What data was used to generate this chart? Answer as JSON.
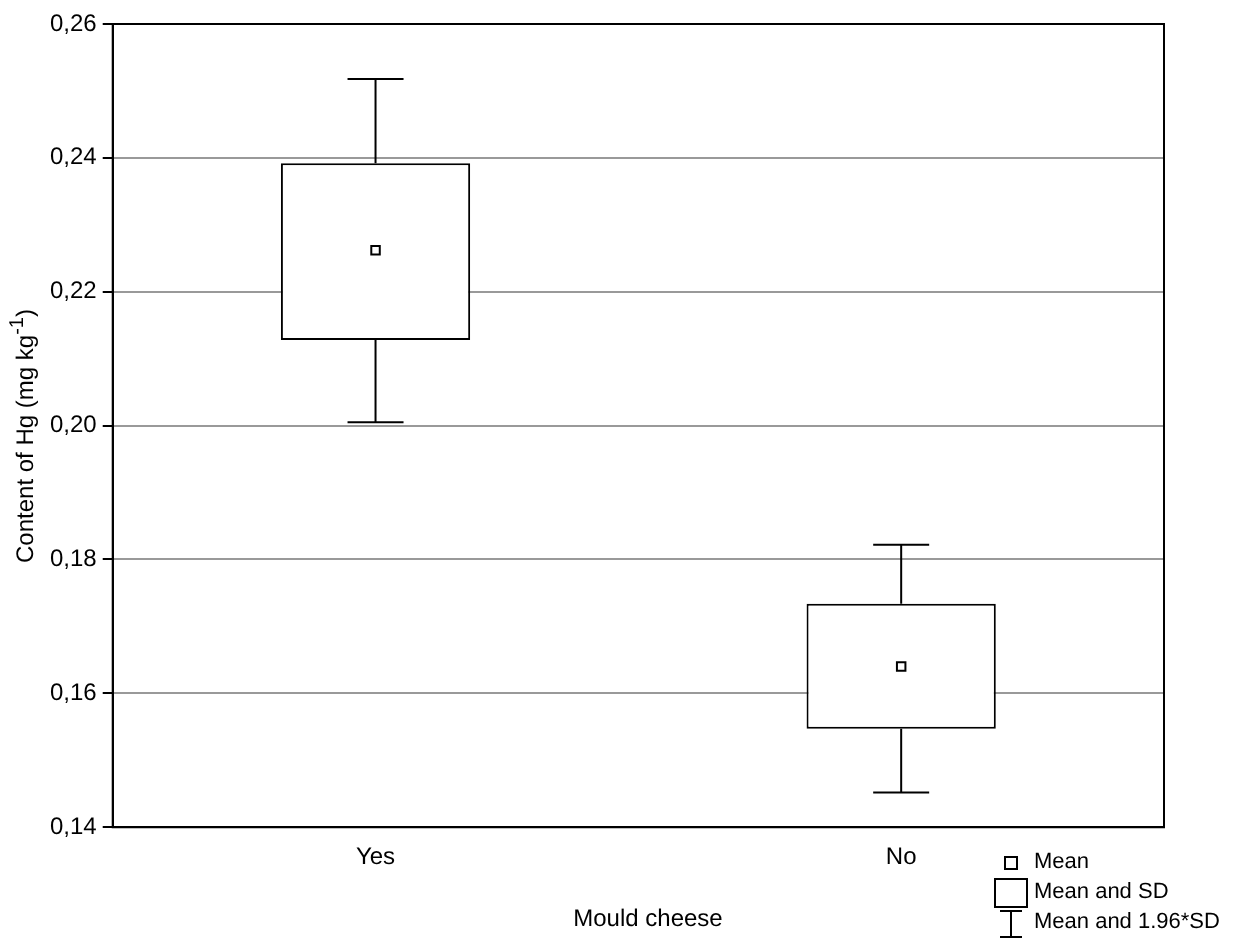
{
  "chart_data": {
    "type": "box",
    "xlabel": "Mould cheese",
    "ylabel": "Content of Hg (mg kg$^{-1}$)",
    "categories": [
      "Yes",
      "No"
    ],
    "boxes": [
      {
        "low": 0.2005,
        "q1": 0.2128,
        "q3": 0.2392,
        "high": 0.2518,
        "mean": 0.2262,
        "median": null
      },
      {
        "low": 0.1452,
        "q1": 0.1547,
        "q3": 0.1734,
        "high": 0.1822,
        "mean": 0.164,
        "median": null
      }
    ],
    "ylim": [
      0.14,
      0.26
    ],
    "yticks": [
      {
        "value": 0.14,
        "label": "0,14"
      },
      {
        "value": 0.16,
        "label": "0,16"
      },
      {
        "value": 0.18,
        "label": "0,18"
      },
      {
        "value": 0.2,
        "label": "0,20"
      },
      {
        "value": 0.22,
        "label": "0,22"
      },
      {
        "value": 0.24,
        "label": "0,24"
      },
      {
        "value": 0.26,
        "label": "0,26"
      }
    ],
    "grid": "y",
    "annotations": [
      "Mean",
      "Mean and SD",
      "Mean and 1.96*SD"
    ]
  }
}
